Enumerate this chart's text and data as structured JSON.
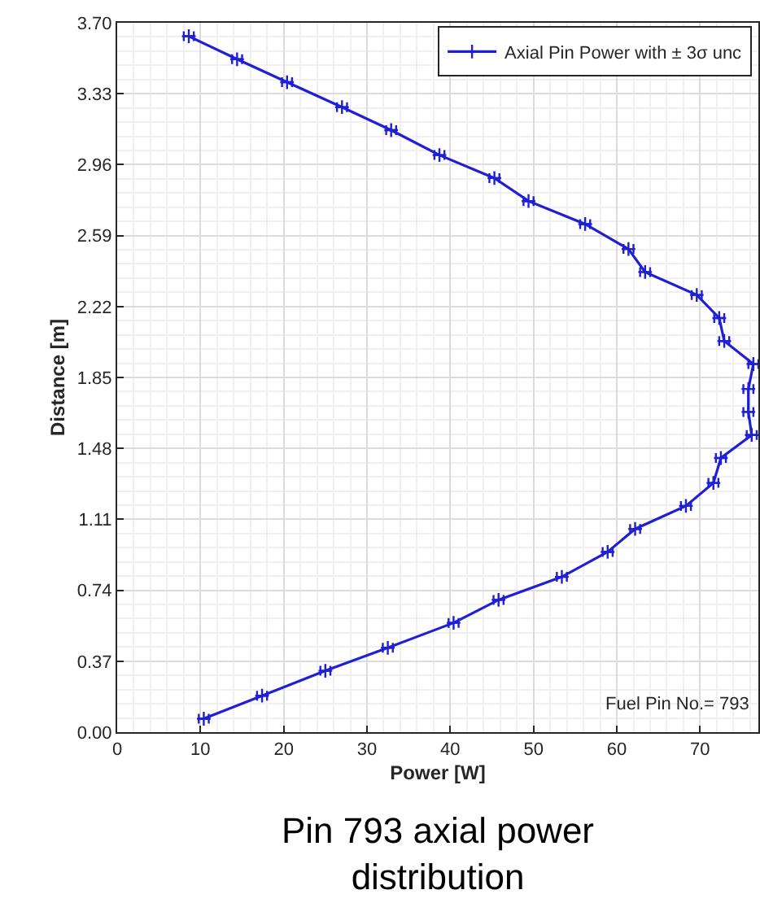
{
  "chart_data": {
    "type": "line",
    "xlabel": "Power [W]",
    "ylabel": "Distance [m]",
    "series": [
      {
        "name": "Axial Pin Power with ± 3σ unc",
        "color": "#1f1fd6",
        "x": [
          8.6,
          14.4,
          20.4,
          27.0,
          32.9,
          38.7,
          45.3,
          49.4,
          56.2,
          61.4,
          63.4,
          69.6,
          72.3,
          72.9,
          76.4,
          75.8,
          75.8,
          76.2,
          72.5,
          71.6,
          68.3,
          62.2,
          58.9,
          53.4,
          45.8,
          40.4,
          32.5,
          25.0,
          17.4,
          10.4
        ],
        "values": [
          3.63,
          3.51,
          3.39,
          3.26,
          3.14,
          3.01,
          2.89,
          2.77,
          2.65,
          2.52,
          2.4,
          2.28,
          2.16,
          2.04,
          1.92,
          1.79,
          1.67,
          1.55,
          1.43,
          1.3,
          1.18,
          1.06,
          0.94,
          0.81,
          0.69,
          0.57,
          0.44,
          0.32,
          0.19,
          0.07
        ],
        "xerrors": [
          0.6,
          0.6,
          0.6,
          0.6,
          0.6,
          0.6,
          0.6,
          0.6,
          0.6,
          0.6,
          0.6,
          0.6,
          0.6,
          0.6,
          0.6,
          0.6,
          0.6,
          0.6,
          0.6,
          0.6,
          0.6,
          0.6,
          0.6,
          0.6,
          0.6,
          0.6,
          0.6,
          0.6,
          0.6,
          0.6
        ]
      }
    ],
    "xlim": [
      0,
      77
    ],
    "xticks": [
      0,
      10,
      20,
      30,
      40,
      50,
      60,
      70
    ],
    "ylim": [
      0,
      3.7
    ],
    "yticks": [
      {
        "value": 0,
        "label": "0.00"
      },
      0.37,
      0.74,
      1.11,
      1.48,
      1.85,
      2.22,
      2.59,
      2.96,
      3.33,
      {
        "value": 3.7,
        "label": "3.70"
      }
    ],
    "grid": true,
    "legend": "top right",
    "marker": "cross",
    "line_style": "solid",
    "annotations": [
      "Fuel Pin No.= 793",
      "Pin 793 axial power distribution"
    ]
  }
}
